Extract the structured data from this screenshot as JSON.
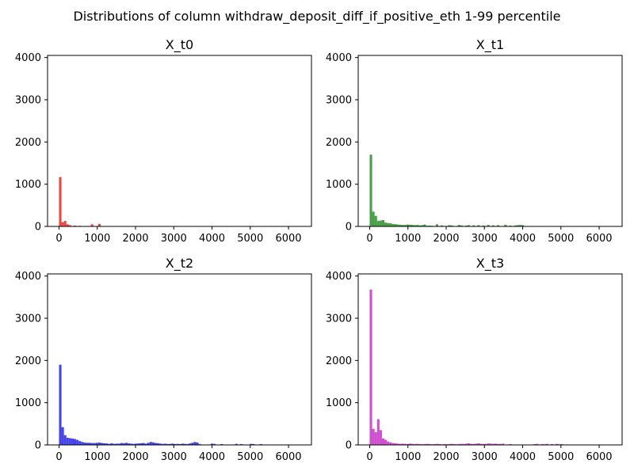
{
  "figure": {
    "title": "Distributions of column withdraw_deposit_diff_if_positive_eth 1-99 percentile"
  },
  "chart_data": [
    {
      "type": "bar",
      "title": "X_t0",
      "color": "#e8403a",
      "xlim": [
        -300,
        6600
      ],
      "ylim": [
        0,
        4050
      ],
      "xticks": [
        0,
        1000,
        2000,
        3000,
        4000,
        5000,
        6000
      ],
      "yticks": [
        0,
        1000,
        2000,
        3000,
        4000
      ],
      "bin_width": 64,
      "bins": [
        [
          0,
          1170
        ],
        [
          64,
          100
        ],
        [
          128,
          130
        ],
        [
          192,
          50
        ],
        [
          256,
          30
        ],
        [
          384,
          20
        ],
        [
          512,
          15
        ],
        [
          576,
          10
        ],
        [
          832,
          50
        ],
        [
          1024,
          60
        ]
      ]
    },
    {
      "type": "bar",
      "title": "X_t1",
      "color": "#3d9a3d",
      "xlim": [
        -300,
        6600
      ],
      "ylim": [
        0,
        4050
      ],
      "xticks": [
        0,
        1000,
        2000,
        3000,
        4000,
        5000,
        6000
      ],
      "yticks": [
        0,
        1000,
        2000,
        3000,
        4000
      ],
      "bin_width": 64,
      "bins": [
        [
          0,
          1700
        ],
        [
          64,
          350
        ],
        [
          128,
          250
        ],
        [
          192,
          130
        ],
        [
          256,
          140
        ],
        [
          320,
          150
        ],
        [
          384,
          90
        ],
        [
          448,
          80
        ],
        [
          512,
          75
        ],
        [
          576,
          60
        ],
        [
          640,
          55
        ],
        [
          704,
          45
        ],
        [
          768,
          40
        ],
        [
          832,
          35
        ],
        [
          896,
          35
        ],
        [
          960,
          45
        ],
        [
          1024,
          40
        ],
        [
          1088,
          35
        ],
        [
          1152,
          30
        ],
        [
          1216,
          35
        ],
        [
          1280,
          25
        ],
        [
          1344,
          30
        ],
        [
          1408,
          45
        ],
        [
          1472,
          15
        ],
        [
          1536,
          20
        ],
        [
          1600,
          15
        ],
        [
          1728,
          50
        ],
        [
          1856,
          25
        ],
        [
          2048,
          30
        ],
        [
          2112,
          25
        ],
        [
          2304,
          35
        ],
        [
          2368,
          25
        ],
        [
          2496,
          20
        ],
        [
          2560,
          30
        ],
        [
          2688,
          25
        ],
        [
          2816,
          30
        ],
        [
          2944,
          20
        ],
        [
          3072,
          35
        ],
        [
          3200,
          25
        ],
        [
          3328,
          30
        ],
        [
          3520,
          40
        ],
        [
          3648,
          20
        ],
        [
          3776,
          25
        ],
        [
          3840,
          30
        ],
        [
          3904,
          35
        ],
        [
          3968,
          30
        ]
      ]
    },
    {
      "type": "bar",
      "title": "X_t2",
      "color": "#3a3ae8",
      "xlim": [
        -300,
        6600
      ],
      "ylim": [
        0,
        4050
      ],
      "xticks": [
        0,
        1000,
        2000,
        3000,
        4000,
        5000,
        6000
      ],
      "yticks": [
        0,
        1000,
        2000,
        3000,
        4000
      ],
      "bin_width": 64,
      "bins": [
        [
          0,
          1900
        ],
        [
          64,
          420
        ],
        [
          128,
          230
        ],
        [
          192,
          170
        ],
        [
          256,
          160
        ],
        [
          320,
          150
        ],
        [
          384,
          140
        ],
        [
          448,
          120
        ],
        [
          512,
          90
        ],
        [
          576,
          70
        ],
        [
          640,
          55
        ],
        [
          704,
          50
        ],
        [
          768,
          50
        ],
        [
          832,
          45
        ],
        [
          896,
          45
        ],
        [
          960,
          50
        ],
        [
          1024,
          55
        ],
        [
          1088,
          45
        ],
        [
          1152,
          40
        ],
        [
          1216,
          35
        ],
        [
          1280,
          25
        ],
        [
          1344,
          40
        ],
        [
          1408,
          25
        ],
        [
          1472,
          30
        ],
        [
          1536,
          30
        ],
        [
          1600,
          45
        ],
        [
          1664,
          40
        ],
        [
          1728,
          50
        ],
        [
          1792,
          35
        ],
        [
          1856,
          30
        ],
        [
          1920,
          25
        ],
        [
          1984,
          30
        ],
        [
          2048,
          35
        ],
        [
          2112,
          40
        ],
        [
          2176,
          45
        ],
        [
          2240,
          30
        ],
        [
          2304,
          50
        ],
        [
          2368,
          70
        ],
        [
          2432,
          60
        ],
        [
          2496,
          45
        ],
        [
          2560,
          40
        ],
        [
          2624,
          30
        ],
        [
          2688,
          25
        ],
        [
          2752,
          30
        ],
        [
          2816,
          20
        ],
        [
          2880,
          25
        ],
        [
          2944,
          30
        ],
        [
          3008,
          20
        ],
        [
          3072,
          25
        ],
        [
          3136,
          20
        ],
        [
          3200,
          30
        ],
        [
          3264,
          25
        ],
        [
          3328,
          20
        ],
        [
          3392,
          35
        ],
        [
          3456,
          50
        ],
        [
          3520,
          70
        ],
        [
          3584,
          55
        ],
        [
          3648,
          20
        ],
        [
          3968,
          30
        ],
        [
          4032,
          25
        ],
        [
          4224,
          20
        ],
        [
          4608,
          25
        ],
        [
          4736,
          20
        ],
        [
          4992,
          25
        ],
        [
          5056,
          20
        ],
        [
          5248,
          20
        ]
      ]
    },
    {
      "type": "bar",
      "title": "X_t3",
      "color": "#cc44cc",
      "xlim": [
        -300,
        6600
      ],
      "ylim": [
        0,
        4050
      ],
      "xticks": [
        0,
        1000,
        2000,
        3000,
        4000,
        5000,
        6000
      ],
      "yticks": [
        0,
        1000,
        2000,
        3000,
        4000
      ],
      "bin_width": 64,
      "bins": [
        [
          0,
          3680
        ],
        [
          64,
          380
        ],
        [
          128,
          300
        ],
        [
          192,
          610
        ],
        [
          256,
          350
        ],
        [
          320,
          150
        ],
        [
          384,
          120
        ],
        [
          448,
          80
        ],
        [
          512,
          60
        ],
        [
          576,
          45
        ],
        [
          640,
          40
        ],
        [
          704,
          30
        ],
        [
          768,
          25
        ],
        [
          832,
          30
        ],
        [
          896,
          25
        ],
        [
          960,
          20
        ],
        [
          1024,
          30
        ],
        [
          1088,
          25
        ],
        [
          1152,
          20
        ],
        [
          1216,
          25
        ],
        [
          1280,
          20
        ],
        [
          1344,
          15
        ],
        [
          1408,
          20
        ],
        [
          1472,
          25
        ],
        [
          1536,
          20
        ],
        [
          1600,
          15
        ],
        [
          1664,
          20
        ],
        [
          1728,
          25
        ],
        [
          1792,
          20
        ],
        [
          1856,
          15
        ],
        [
          1920,
          20
        ],
        [
          1984,
          15
        ],
        [
          2048,
          20
        ],
        [
          2112,
          25
        ],
        [
          2176,
          20
        ],
        [
          2240,
          15
        ],
        [
          2304,
          20
        ],
        [
          2368,
          25
        ],
        [
          2432,
          20
        ],
        [
          2496,
          30
        ],
        [
          2560,
          40
        ],
        [
          2624,
          25
        ],
        [
          2688,
          20
        ],
        [
          2752,
          30
        ],
        [
          2816,
          40
        ],
        [
          2880,
          25
        ],
        [
          2944,
          20
        ],
        [
          3008,
          25
        ],
        [
          3072,
          35
        ],
        [
          3136,
          30
        ],
        [
          3200,
          25
        ],
        [
          3264,
          30
        ],
        [
          3328,
          20
        ],
        [
          3392,
          25
        ],
        [
          3456,
          30
        ],
        [
          3648,
          20
        ],
        [
          4288,
          20
        ],
        [
          4352,
          25
        ],
        [
          4480,
          20
        ],
        [
          4544,
          15
        ],
        [
          4608,
          25
        ],
        [
          4736,
          20
        ],
        [
          4864,
          25
        ],
        [
          4928,
          15
        ],
        [
          4992,
          20
        ]
      ]
    }
  ]
}
